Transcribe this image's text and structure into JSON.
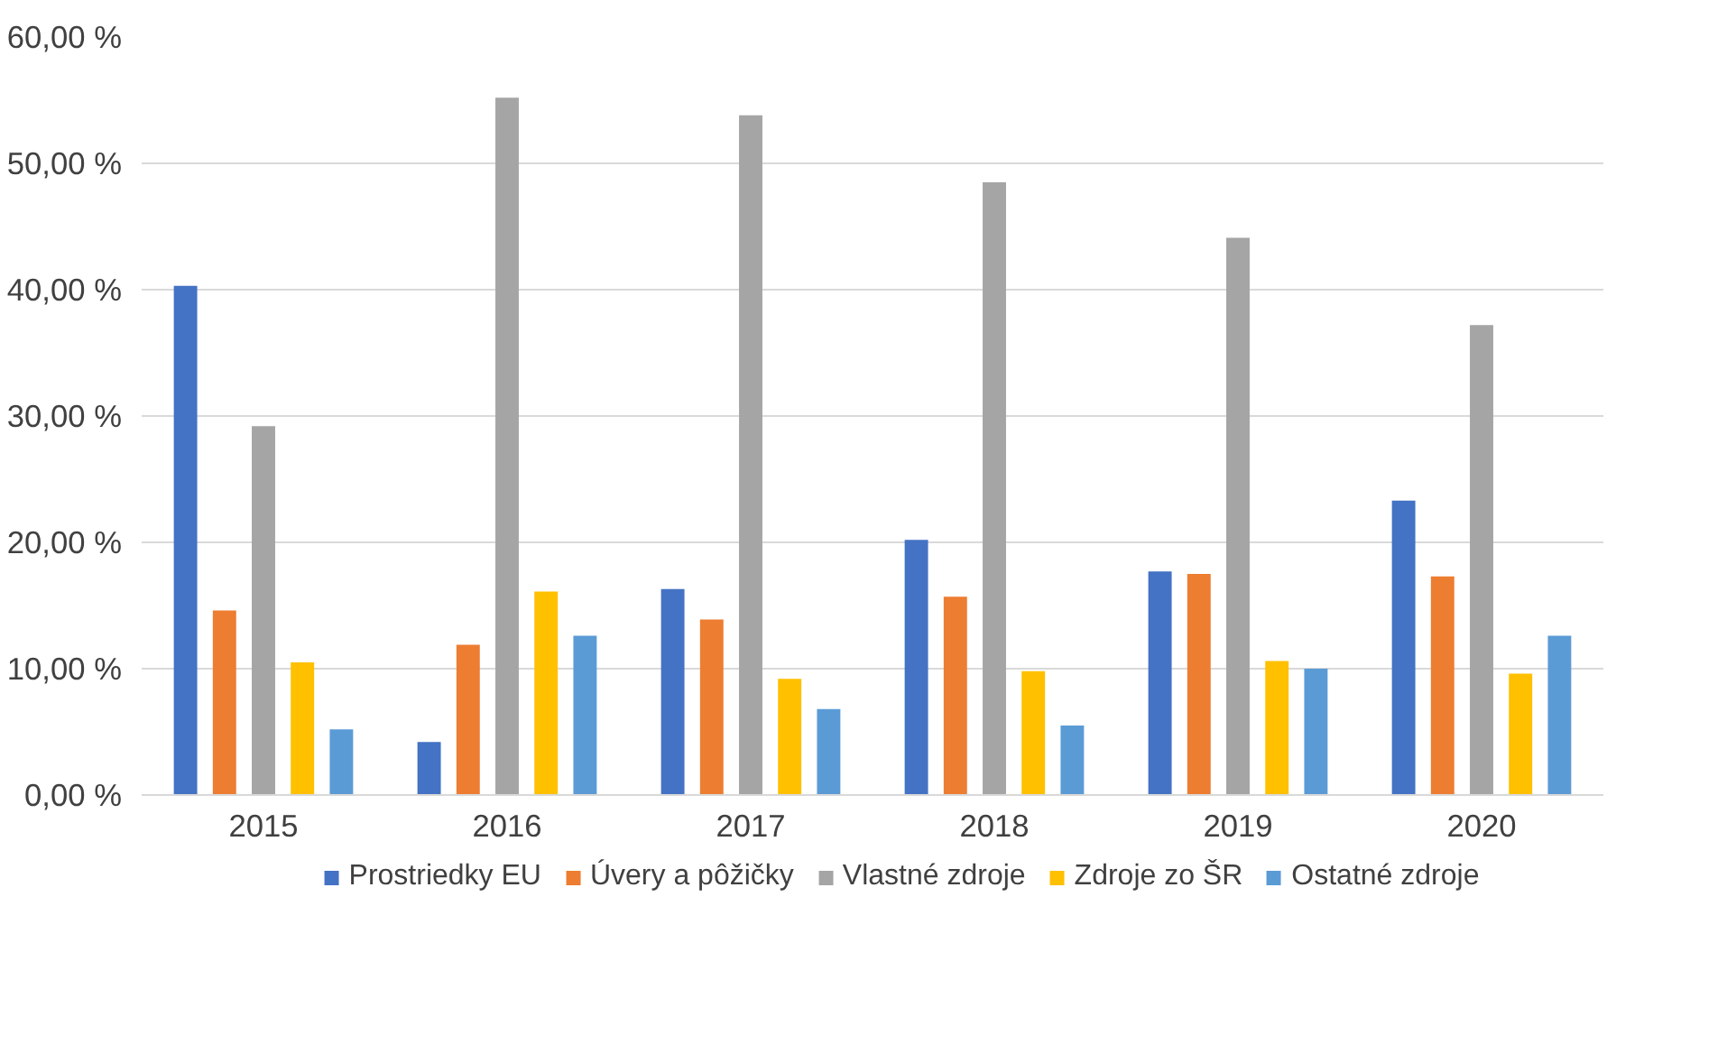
{
  "chart_data": {
    "type": "bar",
    "categories": [
      "2015",
      "2016",
      "2017",
      "2018",
      "2019",
      "2020"
    ],
    "series": [
      {
        "name": "Prostriedky EU",
        "color": "#4472c4",
        "values": [
          40.3,
          4.2,
          16.3,
          20.2,
          17.7,
          23.3
        ]
      },
      {
        "name": "Úvery a pôžičky",
        "color": "#ed7d31",
        "values": [
          14.6,
          11.9,
          13.9,
          15.7,
          17.5,
          17.3
        ]
      },
      {
        "name": "Vlastné zdroje",
        "color": "#a5a5a5",
        "values": [
          29.2,
          55.2,
          53.8,
          48.5,
          44.1,
          37.2
        ]
      },
      {
        "name": "Zdroje zo ŠR",
        "color": "#ffc000",
        "values": [
          10.5,
          16.1,
          9.2,
          9.8,
          10.6,
          9.6
        ]
      },
      {
        "name": "Ostatné zdroje",
        "color": "#5b9bd5",
        "values": [
          5.2,
          12.6,
          6.8,
          5.5,
          10.0,
          12.6
        ]
      }
    ],
    "ylim": [
      0,
      60
    ],
    "yticks": [
      {
        "value": 0,
        "label": "0,00 %"
      },
      {
        "value": 10,
        "label": "10,00 %"
      },
      {
        "value": 20,
        "label": "20,00 %"
      },
      {
        "value": 30,
        "label": "30,00 %"
      },
      {
        "value": 40,
        "label": "40,00 %"
      },
      {
        "value": 50,
        "label": "50,00 %"
      },
      {
        "value": 60,
        "label": "60,00 %"
      }
    ],
    "grid": "y",
    "legend": "bottom"
  }
}
